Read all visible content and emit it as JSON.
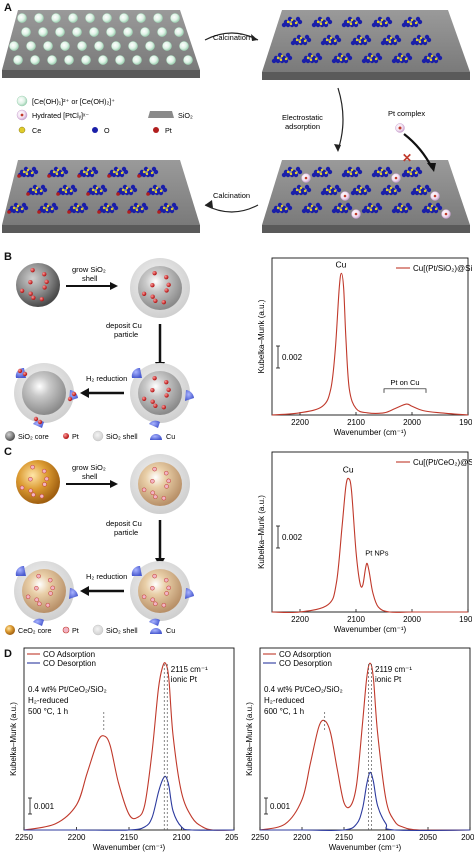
{
  "panels": {
    "a": "A",
    "b": "B",
    "c": "C",
    "d": "D"
  },
  "panelA": {
    "calcination_top": "Calcination",
    "calcination_bottom": "Calcination",
    "electrostatic_1": "Electrostatic",
    "electrostatic_2": "adsorption",
    "pt_complex": "Pt complex",
    "legend_ce_oh": "[Ce(OH)₁]²⁺ or [Ce(OH)₂]⁺",
    "legend_ptcl": "Hydrated [PtClᵧ]ˣ⁻",
    "legend_sio2": "SiO₂",
    "legend_ce": "Ce",
    "legend_o": "O",
    "legend_pt": "Pt"
  },
  "panelB": {
    "grow_1": "grow SiO₂",
    "grow_2": "shell",
    "deposit_1": "deposit Cu",
    "deposit_2": "particle",
    "reduction": "H₂ reduction",
    "legend_core": "SiO₂ core",
    "legend_pt": "Pt",
    "legend_shell": "SiO₂ shell",
    "legend_cu": "Cu"
  },
  "panelC": {
    "grow_1": "grow SiO₂",
    "grow_2": "shell",
    "deposit_1": "deposit Cu",
    "deposit_2": "particle",
    "reduction": "H₂ reduction",
    "legend_core": "CeO₂ core",
    "legend_pt": "Pt",
    "legend_shell": "SiO₂ shell",
    "legend_cu": "Cu"
  },
  "colors": {
    "adsorption": "#c0392b",
    "desorption": "#2c3a9e",
    "cu_blue": "#5566d8",
    "ce_orange": "#d9912a",
    "sio2_gray": "#888888"
  },
  "chart_data": [
    {
      "type": "line",
      "panel": "B",
      "legend": "Cu[(Pt/SiO₂)@SiO₂]",
      "xlabel": "Wavenumber (cm⁻¹)",
      "ylabel": "Kubelka–Munk (a.u.)",
      "xticks": [
        "2200",
        "2100",
        "2000",
        "1900"
      ],
      "xlim": [
        2250,
        1900
      ],
      "scale_bar": "0.002",
      "annotations": [
        "Cu",
        "Pt on Cu"
      ],
      "series": [
        {
          "x": [
            2250,
            2200,
            2160,
            2145,
            2137,
            2130,
            2126,
            2122,
            2118,
            2112,
            2100,
            2080,
            2050,
            2030,
            2010,
            2000,
            1980,
            1950,
            1900
          ],
          "y": [
            0.0,
            0.0001,
            0.0004,
            0.0012,
            0.003,
            0.0058,
            0.0065,
            0.0058,
            0.0035,
            0.0012,
            0.0003,
            0.0001,
            0.0001,
            0.0003,
            0.0005,
            0.0004,
            0.0002,
            0.0001,
            0.0
          ]
        }
      ]
    },
    {
      "type": "line",
      "panel": "C",
      "legend": "Cu[(Pt/CeO₂)@SiO₂]",
      "xlabel": "Wavenumber (cm⁻¹)",
      "ylabel": "Kubelka–Munk (a.u.)",
      "xticks": [
        "2200",
        "2100",
        "2000",
        "1900"
      ],
      "xlim": [
        2250,
        1900
      ],
      "scale_bar": "0.002",
      "annotations": [
        "Cu",
        "Pt NPs"
      ],
      "series": [
        {
          "x": [
            2250,
            2200,
            2150,
            2135,
            2125,
            2118,
            2113,
            2108,
            2100,
            2093,
            2088,
            2083,
            2080,
            2076,
            2070,
            2060,
            2040,
            2000,
            1950,
            1900
          ],
          "y": [
            0.0,
            0.0,
            0.0003,
            0.0012,
            0.0035,
            0.0052,
            0.0055,
            0.005,
            0.0025,
            0.0012,
            0.0011,
            0.0018,
            0.002,
            0.0016,
            0.0008,
            0.0002,
            0.0,
            0.0,
            0.0,
            0.0
          ]
        }
      ]
    },
    {
      "type": "line",
      "panel": "D-left",
      "xlabel": "Wavenumber (cm⁻¹)",
      "ylabel": "Kubelka–Munk (a.u.)",
      "xticks": [
        "2250",
        "2200",
        "2150",
        "2100",
        "2050"
      ],
      "xlim": [
        2250,
        2050
      ],
      "scale_bar": "0.001",
      "sample": [
        "0.4 wt% Pt/CeO₂/SiO₂",
        "H₂-reduced",
        "500 °C, 1 h"
      ],
      "peak_label": [
        "2115 cm⁻¹",
        "ionic Pt"
      ],
      "legend": [
        "CO Adsorption",
        "CO Desorption"
      ],
      "series": [
        {
          "name": "CO Adsorption",
          "x": [
            2250,
            2220,
            2200,
            2190,
            2180,
            2174,
            2168,
            2160,
            2150,
            2142,
            2135,
            2128,
            2122,
            2118,
            2115,
            2112,
            2108,
            2100,
            2090,
            2080,
            2070,
            2050
          ],
          "y": [
            0.0,
            0.0002,
            0.0008,
            0.0018,
            0.0028,
            0.003,
            0.0027,
            0.0015,
            0.0005,
            0.0004,
            0.0008,
            0.0025,
            0.0045,
            0.0052,
            0.0053,
            0.0048,
            0.003,
            0.0012,
            0.0004,
            0.0001,
            0.0,
            0.0
          ]
        },
        {
          "name": "CO Desorption",
          "x": [
            2250,
            2200,
            2150,
            2135,
            2128,
            2122,
            2118,
            2115,
            2112,
            2108,
            2100,
            2090,
            2050
          ],
          "y": [
            0.0,
            0.0,
            0.0,
            0.0001,
            0.0004,
            0.0012,
            0.0016,
            0.0017,
            0.0014,
            0.0006,
            0.0001,
            0.0,
            0.0
          ]
        }
      ]
    },
    {
      "type": "line",
      "panel": "D-right",
      "xlabel": "Wavenumber (cm⁻¹)",
      "ylabel": "Kubelka–Munk (a.u.)",
      "xticks": [
        "2250",
        "2200",
        "2150",
        "2100",
        "2050",
        "2000"
      ],
      "xlim": [
        2250,
        2000
      ],
      "scale_bar": "0.001",
      "sample": [
        "0.4 wt% Pt/CeO₂/SiO₂",
        "H₂-reduced",
        "600 °C, 1 h"
      ],
      "peak_label": [
        "2119 cm⁻¹",
        "ionic Pt"
      ],
      "legend": [
        "CO Adsorption",
        "CO Desorption"
      ],
      "series": [
        {
          "name": "CO Adsorption",
          "x": [
            2250,
            2220,
            2200,
            2190,
            2180,
            2173,
            2166,
            2158,
            2150,
            2142,
            2135,
            2128,
            2123,
            2119,
            2115,
            2110,
            2100,
            2090,
            2080,
            2060,
            2000
          ],
          "y": [
            0.0,
            0.0002,
            0.001,
            0.0022,
            0.0034,
            0.0036,
            0.0032,
            0.002,
            0.0009,
            0.0008,
            0.0015,
            0.0035,
            0.005,
            0.0055,
            0.005,
            0.0032,
            0.001,
            0.0003,
            0.0001,
            0.0,
            0.0
          ]
        },
        {
          "name": "CO Desorption",
          "x": [
            2250,
            2200,
            2150,
            2135,
            2128,
            2123,
            2119,
            2115,
            2110,
            2100,
            2090,
            2000
          ],
          "y": [
            0.0,
            0.0,
            0.0,
            0.0002,
            0.0007,
            0.0015,
            0.0019,
            0.0016,
            0.0008,
            0.0002,
            0.0,
            0.0
          ]
        }
      ]
    }
  ]
}
